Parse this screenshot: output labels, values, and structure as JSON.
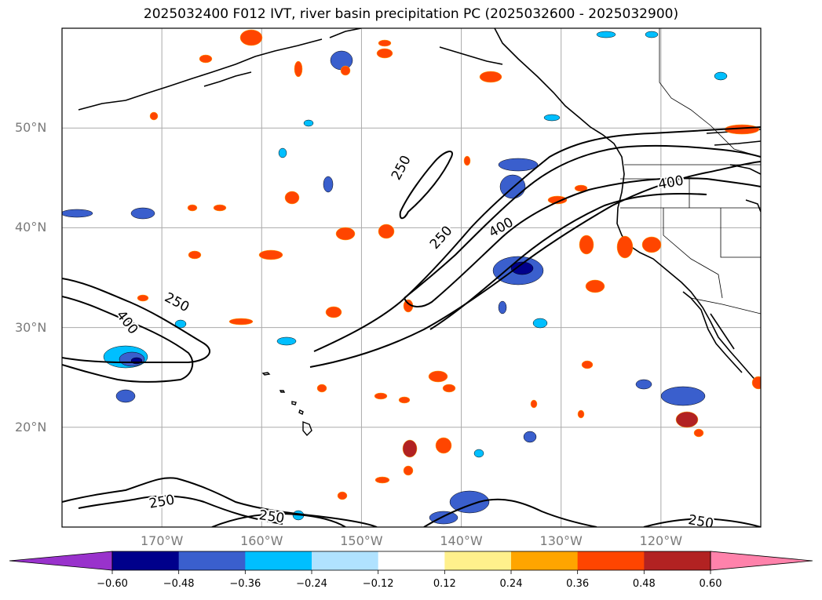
{
  "title": "2025032400 F012 IVT, river basin precipitation PC (2025032600 - 2025032900)",
  "map": {
    "extent": {
      "lon_min": -180,
      "lon_max": -110,
      "lat_min": 10,
      "lat_max": 60
    },
    "lat_ticks": [
      {
        "lat": 50,
        "label": "50°N"
      },
      {
        "lat": 40,
        "label": "40°N"
      },
      {
        "lat": 30,
        "label": "30°N"
      },
      {
        "lat": 20,
        "label": "20°N"
      }
    ],
    "lon_ticks": [
      {
        "lon": -170,
        "label": "170°W"
      },
      {
        "lon": -160,
        "label": "160°W"
      },
      {
        "lon": -150,
        "label": "150°W"
      },
      {
        "lon": -140,
        "label": "140°W"
      },
      {
        "lon": -130,
        "label": "130°W"
      },
      {
        "lon": -120,
        "label": "120°W"
      }
    ],
    "contour_labels": [
      {
        "text": "250",
        "lon": -168.5,
        "lat": 32.5,
        "rot": 28
      },
      {
        "text": "400",
        "lon": -173.5,
        "lat": 30.5,
        "rot": 52
      },
      {
        "text": "250",
        "lon": -146,
        "lat": 46,
        "rot": -62
      },
      {
        "text": "250",
        "lon": -142,
        "lat": 39,
        "rot": -48
      },
      {
        "text": "400",
        "lon": -136,
        "lat": 40,
        "rot": -30
      },
      {
        "text": "400",
        "lon": -119,
        "lat": 44.5,
        "rot": -10
      },
      {
        "text": "250",
        "lon": -170,
        "lat": 12.5,
        "rot": -10
      },
      {
        "text": "250",
        "lon": -159,
        "lat": 11,
        "rot": 8
      },
      {
        "text": "250",
        "lon": -116,
        "lat": 10.5,
        "rot": 10
      }
    ]
  },
  "colorbar": {
    "colors": [
      "#9932cc",
      "#00008b",
      "#3a5fcd",
      "#00bfff",
      "#b0e2ff",
      "#ffffff",
      "#fff08c",
      "#ffa500",
      "#ff4500",
      "#b22222",
      "#ff82ab"
    ],
    "tick_labels": [
      "−0.60",
      "−0.48",
      "−0.36",
      "−0.24",
      "−0.12",
      "0.12",
      "0.24",
      "0.36",
      "0.48",
      "0.60"
    ]
  },
  "colors": {
    "grid": "#aaaaaa",
    "contour": "#000000",
    "coast": "#000000",
    "tick_label": "#7a7a7a"
  }
}
